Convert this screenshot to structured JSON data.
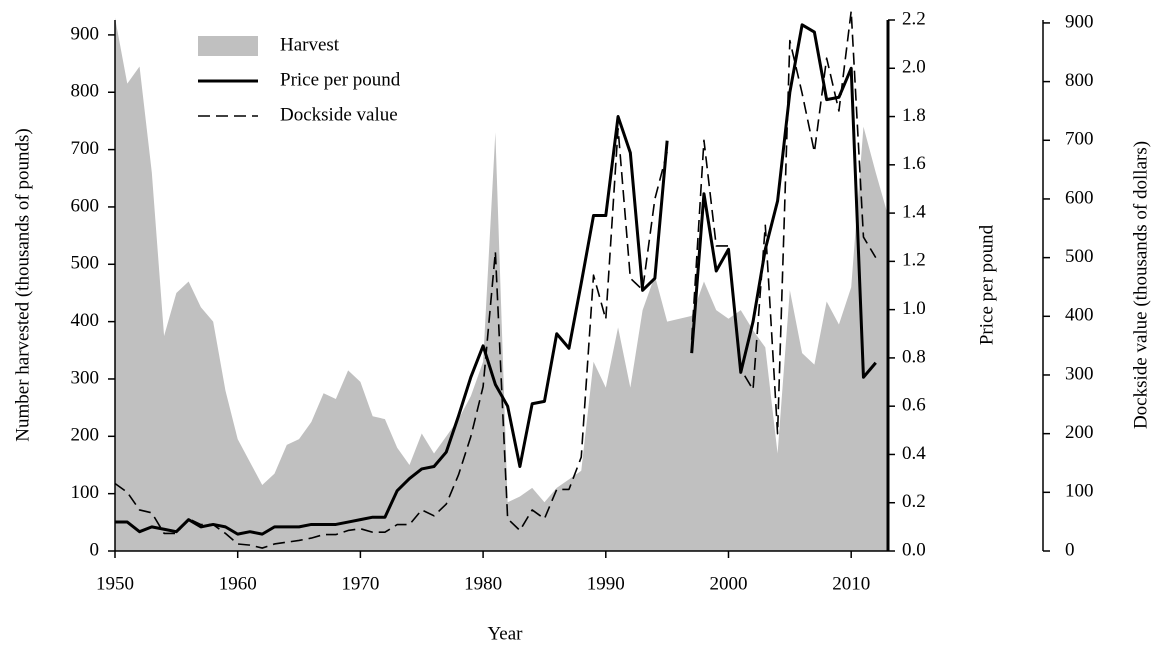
{
  "chart_data": {
    "type": "line",
    "x_label": "Year",
    "y_label": "Number harvested (thousands of pounds)",
    "y2_label": "Price per pound",
    "y3_label": "Dockside value (thousands of dollars)",
    "x": [
      1950,
      1951,
      1952,
      1953,
      1954,
      1955,
      1956,
      1957,
      1958,
      1959,
      1960,
      1961,
      1962,
      1963,
      1964,
      1965,
      1966,
      1967,
      1968,
      1969,
      1970,
      1971,
      1972,
      1973,
      1974,
      1975,
      1976,
      1977,
      1978,
      1979,
      1980,
      1981,
      1982,
      1983,
      1984,
      1985,
      1986,
      1987,
      1988,
      1989,
      1990,
      1991,
      1992,
      1993,
      1994,
      1995,
      1996,
      1997,
      1998,
      1999,
      2000,
      2001,
      2002,
      2003,
      2004,
      2005,
      2006,
      2007,
      2008,
      2009,
      2010,
      2011,
      2012,
      2013
    ],
    "xlim": [
      1950,
      2013
    ],
    "xticks": [
      1950,
      1960,
      1970,
      1980,
      1990,
      2000,
      2010
    ],
    "ylim": [
      0,
      926
    ],
    "yticks": [
      0,
      100,
      200,
      300,
      400,
      500,
      600,
      700,
      800,
      900
    ],
    "y2lim": [
      0,
      2.2
    ],
    "y2ticks": [
      {
        "value": 0,
        "label": "0.0"
      },
      {
        "value": 0.2,
        "label": "0.2"
      },
      {
        "value": 0.4,
        "label": "0.4"
      },
      {
        "value": 0.6,
        "label": "0.6"
      },
      {
        "value": 0.8,
        "label": "0.8"
      },
      {
        "value": 1,
        "label": "1.0"
      },
      {
        "value": 1.2,
        "label": "1.2"
      },
      {
        "value": 1.4,
        "label": "1.4"
      },
      {
        "value": 1.6,
        "label": "1.6"
      },
      {
        "value": 1.8,
        "label": "1.8"
      },
      {
        "value": 2,
        "label": "2.0"
      },
      {
        "value": 2.2,
        "label": "2.2"
      }
    ],
    "y3lim": [
      0,
      905
    ],
    "y3ticks": [
      0,
      100,
      200,
      300,
      400,
      500,
      600,
      700,
      800,
      900
    ],
    "legend": "upper left",
    "series": [
      {
        "name": "Harvest",
        "style": "area",
        "color": "#c0c0c0",
        "axis": "y",
        "values": [
          930,
          815,
          845,
          660,
          375,
          450,
          470,
          425,
          400,
          280,
          195,
          155,
          115,
          135,
          185,
          195,
          225,
          275,
          265,
          315,
          295,
          235,
          230,
          180,
          150,
          205,
          170,
          200,
          230,
          270,
          330,
          730,
          85,
          95,
          110,
          85,
          110,
          125,
          140,
          330,
          285,
          390,
          285,
          420,
          480,
          400,
          405,
          410,
          470,
          420,
          405,
          420,
          385,
          355,
          170,
          455,
          345,
          325,
          435,
          395,
          460,
          740,
          660,
          585
        ]
      },
      {
        "name": "Price per pound",
        "style": "solid",
        "color": "#000000",
        "axis": "y2",
        "values": [
          0.12,
          0.12,
          0.08,
          0.1,
          0.09,
          0.08,
          0.13,
          0.1,
          0.11,
          0.1,
          0.07,
          0.08,
          0.07,
          0.1,
          0.1,
          0.1,
          0.11,
          0.11,
          0.11,
          0.12,
          0.13,
          0.14,
          0.14,
          0.25,
          0.3,
          0.34,
          0.35,
          0.41,
          0.56,
          0.72,
          0.85,
          0.69,
          0.6,
          0.35,
          0.61,
          0.62,
          0.9,
          0.84,
          1.11,
          1.39,
          1.39,
          1.8,
          1.65,
          1.08,
          1.13,
          1.7,
          null,
          0.82,
          1.48,
          1.16,
          1.25,
          0.74,
          0.95,
          1.25,
          1.45,
          1.9,
          2.18,
          2.15,
          1.87,
          1.88,
          2.0,
          0.72,
          0.78,
          null
        ]
      },
      {
        "name": "Dockside value",
        "style": "dashed",
        "color": "#000000",
        "axis": "y3",
        "values": [
          115,
          100,
          70,
          65,
          30,
          30,
          55,
          45,
          45,
          30,
          12,
          10,
          5,
          12,
          15,
          18,
          22,
          28,
          28,
          35,
          38,
          32,
          32,
          45,
          45,
          70,
          60,
          80,
          130,
          195,
          280,
          510,
          55,
          35,
          70,
          55,
          105,
          105,
          160,
          470,
          395,
          720,
          465,
          445,
          600,
          680,
          null,
          360,
          700,
          520,
          520,
          310,
          275,
          555,
          200,
          870,
          780,
          680,
          840,
          750,
          920,
          535,
          500,
          null
        ]
      }
    ]
  }
}
